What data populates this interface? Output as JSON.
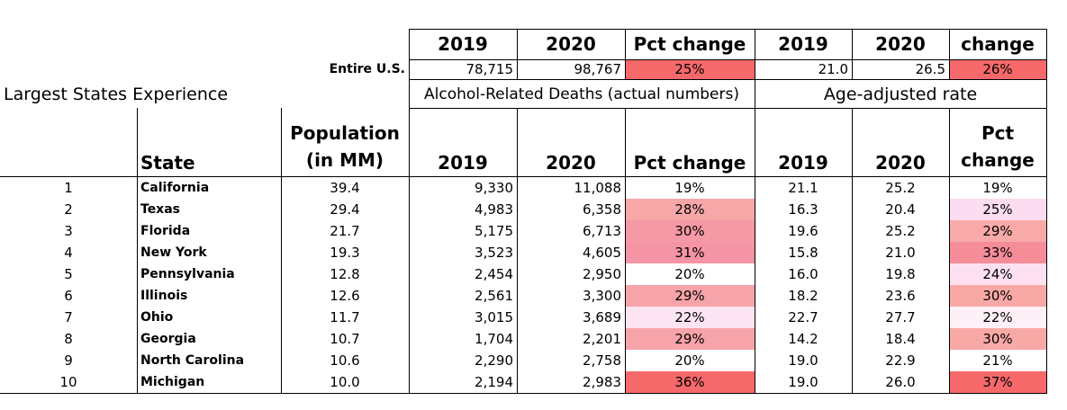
{
  "top_header": {
    "deaths_2019": "2019",
    "deaths_2020": "2020",
    "deaths_pct": "Pct change",
    "rate_2019": "2019",
    "rate_2020": "2020",
    "rate_change": "change"
  },
  "us_row": {
    "label": "Entire U.S.",
    "deaths_2019": "78,715",
    "deaths_2020": "98,767",
    "deaths_pct": "25%",
    "rate_2019": "21.0",
    "rate_2020": "26.5",
    "rate_change": "26%"
  },
  "section_titles": {
    "left": "Largest States Experience",
    "deaths": "Alcohol-Related Deaths (actual numbers)",
    "rate": "Age-adjusted rate"
  },
  "columns": {
    "state": "State",
    "population_line1": "Population",
    "population_line2": "(in MM)",
    "deaths_2019": "2019",
    "deaths_2020": "2020",
    "deaths_pct": "Pct change",
    "rate_2019": "2019",
    "rate_2020": "2020",
    "rate_pct_line1": "Pct",
    "rate_pct_line2": "change"
  },
  "colors": {
    "strong_red": "#f5696b",
    "mid_red": "#f8a0a2",
    "light_red": "#fbc1c3",
    "pink": "#fde0ee"
  },
  "rows": [
    {
      "rank": "1",
      "state": "California",
      "pop": "39.4",
      "d2019": "9,330",
      "d2020": "11,088",
      "dpct": "19%",
      "dcolor": "",
      "r2019": "21.1",
      "r2020": "25.2",
      "rpct": "19%",
      "rcolor": ""
    },
    {
      "rank": "2",
      "state": "Texas",
      "pop": "29.4",
      "d2019": "4,983",
      "d2020": "6,358",
      "dpct": "28%",
      "dcolor": "#f8a7a9",
      "r2019": "16.3",
      "r2020": "20.4",
      "rpct": "25%",
      "rcolor": "#fbdcf0"
    },
    {
      "rank": "3",
      "state": "Florida",
      "pop": "21.7",
      "d2019": "5,175",
      "d2020": "6,713",
      "dpct": "30%",
      "dcolor": "#f59aa4",
      "r2019": "19.6",
      "r2020": "25.2",
      "rpct": "29%",
      "rcolor": "#f8aaa8"
    },
    {
      "rank": "4",
      "state": "New York",
      "pop": "19.3",
      "d2019": "3,523",
      "d2020": "4,605",
      "dpct": "31%",
      "dcolor": "#f594a4",
      "r2019": "15.8",
      "r2020": "21.0",
      "rpct": "33%",
      "rcolor": "#f58d98"
    },
    {
      "rank": "5",
      "state": "Pennsylvania",
      "pop": "12.8",
      "d2019": "2,454",
      "d2020": "2,950",
      "dpct": "20%",
      "dcolor": "",
      "r2019": "16.0",
      "r2020": "19.8",
      "rpct": "24%",
      "rcolor": "#fce0f2"
    },
    {
      "rank": "6",
      "state": "Illinois",
      "pop": "12.6",
      "d2019": "2,561",
      "d2020": "3,300",
      "dpct": "29%",
      "dcolor": "#f7a3aa",
      "r2019": "18.2",
      "r2020": "23.6",
      "rpct": "30%",
      "rcolor": "#f8a9a6"
    },
    {
      "rank": "7",
      "state": "Ohio",
      "pop": "11.7",
      "d2019": "3,015",
      "d2020": "3,689",
      "dpct": "22%",
      "dcolor": "#fce4f3",
      "r2019": "22.7",
      "r2020": "27.7",
      "rpct": "22%",
      "rcolor": "#fdf0f7"
    },
    {
      "rank": "8",
      "state": "Georgia",
      "pop": "10.7",
      "d2019": "1,704",
      "d2020": "2,201",
      "dpct": "29%",
      "dcolor": "#f7a3aa",
      "r2019": "14.2",
      "r2020": "18.4",
      "rpct": "30%",
      "rcolor": "#f8a9a6"
    },
    {
      "rank": "9",
      "state": "North Carolina",
      "pop": "10.6",
      "d2019": "2,290",
      "d2020": "2,758",
      "dpct": "20%",
      "dcolor": "",
      "r2019": "19.0",
      "r2020": "22.9",
      "rpct": "21%",
      "rcolor": ""
    },
    {
      "rank": "10",
      "state": "Michigan",
      "pop": "10.0",
      "d2019": "2,194",
      "d2020": "2,983",
      "dpct": "36%",
      "dcolor": "#f5696b",
      "r2019": "19.0",
      "r2020": "26.0",
      "rpct": "37%",
      "rcolor": "#f5696b"
    }
  ]
}
